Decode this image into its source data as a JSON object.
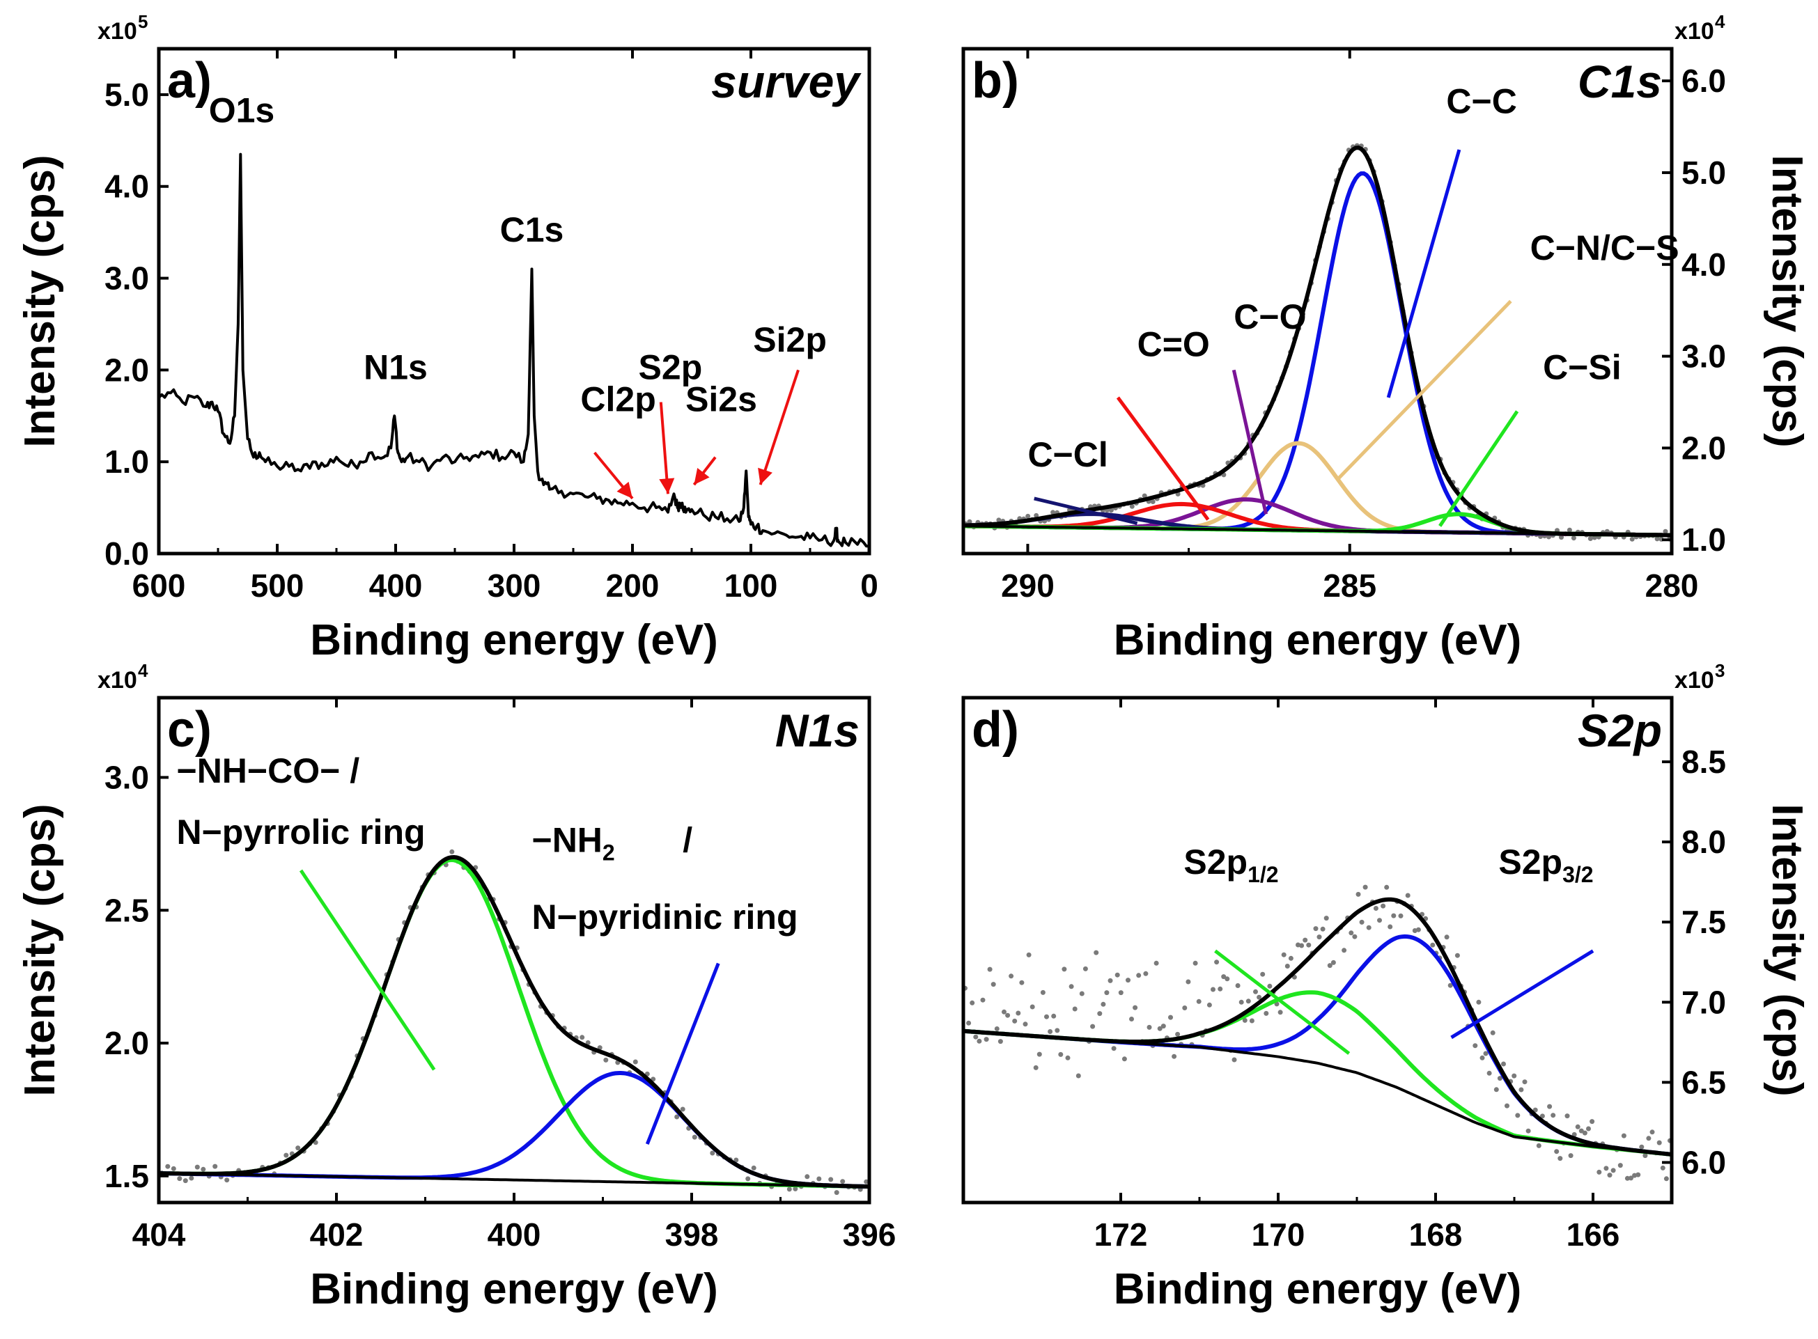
{
  "figure": {
    "description_none": ""
  },
  "colors": {
    "black": "#000000",
    "blue": "#0a10e6",
    "green": "#1fe51f",
    "red": "#f11010",
    "purple": "#7a1496",
    "tan": "#e8c27a",
    "navy": "#141470",
    "gray": "#7a7a7a",
    "arrow_red": "#ee1111"
  },
  "chart_data": [
    {
      "id": "a",
      "type": "line",
      "panel_letter": "a)",
      "title": "survey",
      "xlabel": "Binding energy (eV)",
      "ylabel": "Intensity (cps)",
      "y_multiplier": {
        "base": "x10",
        "exp": "5"
      },
      "xlim": [
        600,
        0
      ],
      "ylim": [
        0,
        5.5
      ],
      "xticks": [
        600,
        500,
        400,
        300,
        200,
        100,
        0
      ],
      "xtick_labels": [
        "600",
        "500",
        "400",
        "300",
        "200",
        "100",
        "0"
      ],
      "yticks": [
        0,
        1,
        2,
        3,
        4,
        5
      ],
      "ytick_labels": [
        "0.0",
        "1.0",
        "2.0",
        "3.0",
        "4.0",
        "5.0"
      ],
      "series": [
        {
          "name": "survey spectrum",
          "color_key": "black",
          "x": [
            600,
            590,
            580,
            570,
            560,
            555,
            550,
            545,
            540,
            536,
            533,
            531,
            529,
            525,
            520,
            515,
            510,
            500,
            490,
            480,
            470,
            460,
            450,
            440,
            430,
            420,
            410,
            404,
            401,
            398,
            395,
            390,
            380,
            370,
            360,
            350,
            340,
            330,
            320,
            310,
            300,
            292,
            288,
            285,
            283,
            280,
            275,
            270,
            260,
            250,
            240,
            230,
            220,
            210,
            200,
            190,
            180,
            170,
            165,
            162,
            160,
            158,
            155,
            150,
            140,
            130,
            120,
            110,
            106,
            104,
            102,
            100,
            95,
            90,
            80,
            70,
            60,
            50,
            40,
            30,
            28,
            26,
            20,
            10,
            0
          ],
          "values": [
            1.7,
            1.75,
            1.65,
            1.7,
            1.6,
            1.65,
            1.55,
            1.3,
            1.2,
            1.5,
            2.5,
            4.35,
            2.0,
            1.25,
            1.05,
            1.1,
            1.0,
            0.95,
            0.95,
            0.9,
            1.0,
            0.95,
            1.05,
            0.95,
            1.0,
            1.1,
            1.05,
            1.15,
            1.5,
            1.1,
            1.0,
            1.05,
            1.0,
            0.95,
            1.05,
            1.0,
            1.05,
            1.05,
            1.1,
            1.05,
            1.1,
            1.0,
            1.3,
            3.1,
            1.5,
            0.9,
            0.75,
            0.7,
            0.68,
            0.65,
            0.62,
            0.6,
            0.58,
            0.55,
            0.55,
            0.5,
            0.5,
            0.45,
            0.65,
            0.5,
            0.55,
            0.55,
            0.45,
            0.48,
            0.42,
            0.4,
            0.38,
            0.35,
            0.5,
            0.9,
            0.4,
            0.32,
            0.3,
            0.25,
            0.22,
            0.2,
            0.18,
            0.17,
            0.15,
            0.14,
            0.25,
            0.13,
            0.12,
            0.1,
            0.08
          ]
        }
      ],
      "annotations": [
        {
          "text": "O1s",
          "x": 530,
          "y": 4.7
        },
        {
          "text": "N1s",
          "x": 400,
          "y": 1.9
        },
        {
          "text": "C1s",
          "x": 285,
          "y": 3.4
        },
        {
          "text": "Cl2p",
          "x": 212,
          "y": 1.55
        },
        {
          "text": "S2p",
          "x": 168,
          "y": 1.9
        },
        {
          "text": "Si2s",
          "x": 125,
          "y": 1.55
        },
        {
          "text": "Si2p",
          "x": 67,
          "y": 2.2
        }
      ],
      "arrows": [
        {
          "x1": 232,
          "y1": 1.1,
          "x2": 200,
          "y2": 0.6
        },
        {
          "x1": 176,
          "y1": 1.65,
          "x2": 170,
          "y2": 0.65
        },
        {
          "x1": 130,
          "y1": 1.05,
          "x2": 148,
          "y2": 0.75
        },
        {
          "x1": 60,
          "y1": 2.0,
          "x2": 92,
          "y2": 0.75
        }
      ]
    },
    {
      "id": "b",
      "type": "line",
      "panel_letter": "b)",
      "title": "C1s",
      "xlabel": "Binding energy (eV)",
      "ylabel": "Intensity (cps)",
      "y_multiplier": {
        "base": "x10",
        "exp": "4"
      },
      "xlim": [
        291,
        280
      ],
      "ylim": [
        0.85,
        6.35
      ],
      "xticks": [
        290,
        285,
        280
      ],
      "xtick_labels": [
        "290",
        "285",
        "280"
      ],
      "yticks": [
        1,
        2,
        3,
        4,
        5,
        6
      ],
      "ytick_labels": [
        "1.0",
        "2.0",
        "3.0",
        "4.0",
        "5.0",
        "6.0"
      ],
      "baseline": {
        "x": [
          291,
          280
        ],
        "y": [
          1.15,
          1.05
        ]
      },
      "series": [
        {
          "name": "C−C",
          "color_key": "blue",
          "center": 284.8,
          "amplitude": 3.9,
          "sigma": 0.62
        },
        {
          "name": "C−N/C−S",
          "color_key": "tan",
          "center": 285.8,
          "amplitude": 0.95,
          "sigma": 0.6
        },
        {
          "name": "C−O",
          "color_key": "purple",
          "center": 286.6,
          "amplitude": 0.33,
          "sigma": 0.7
        },
        {
          "name": "C=O",
          "color_key": "red",
          "center": 287.6,
          "amplitude": 0.27,
          "sigma": 0.75
        },
        {
          "name": "C−Cl",
          "color_key": "navy",
          "center": 289.0,
          "amplitude": 0.15,
          "sigma": 0.8
        },
        {
          "name": "C−Si",
          "color_key": "green",
          "center": 283.3,
          "amplitude": 0.2,
          "sigma": 0.5
        }
      ],
      "annotations": [
        {
          "text": "C−C",
          "x": 283.5,
          "y": 5.65
        },
        {
          "text": "C−N/C−S",
          "x": 282.2,
          "y": 4.05
        },
        {
          "text": "C−O",
          "x": 286.8,
          "y": 3.3
        },
        {
          "text": "C=O",
          "x": 288.3,
          "y": 3.0
        },
        {
          "text": "C−Cl",
          "x": 290.0,
          "y": 1.8
        },
        {
          "text": "C−Si",
          "x": 282.0,
          "y": 2.75
        }
      ],
      "pointers": [
        {
          "color_key": "blue",
          "x1": 283.3,
          "y1": 5.25,
          "x2": 284.4,
          "y2": 2.55
        },
        {
          "color_key": "tan",
          "x1": 282.5,
          "y1": 3.6,
          "x2": 285.2,
          "y2": 1.65
        },
        {
          "color_key": "purple",
          "x1": 286.8,
          "y1": 2.85,
          "x2": 286.3,
          "y2": 1.28
        },
        {
          "color_key": "red",
          "x1": 288.6,
          "y1": 2.55,
          "x2": 287.2,
          "y2": 1.22
        },
        {
          "color_key": "navy",
          "x1": 289.9,
          "y1": 1.45,
          "x2": 288.3,
          "y2": 1.18
        },
        {
          "color_key": "green",
          "x1": 282.4,
          "y1": 2.4,
          "x2": 283.6,
          "y2": 1.15
        }
      ]
    },
    {
      "id": "c",
      "type": "line",
      "panel_letter": "c)",
      "title": "N1s",
      "xlabel": "Binding energy (eV)",
      "ylabel": "Intensity (cps)",
      "y_multiplier": {
        "base": "x10",
        "exp": "4"
      },
      "xlim": [
        404,
        396
      ],
      "ylim": [
        1.4,
        3.3
      ],
      "xticks": [
        404,
        402,
        400,
        398,
        396
      ],
      "xtick_labels": [
        "404",
        "402",
        "400",
        "398",
        "396"
      ],
      "yticks": [
        1.5,
        2.0,
        2.5,
        3.0
      ],
      "ytick_labels": [
        "1.5",
        "2.0",
        "2.5",
        "3.0"
      ],
      "baseline": {
        "x": [
          404,
          396
        ],
        "y": [
          1.51,
          1.46
        ]
      },
      "series": [
        {
          "name": "−NH−CO− / N−pyrrolic ring",
          "color_key": "green",
          "center": 400.7,
          "amplitude": 1.2,
          "sigma": 0.75
        },
        {
          "name": "−NH2 / N−pyridinic ring",
          "color_key": "blue",
          "center": 398.8,
          "amplitude": 0.41,
          "sigma": 0.7
        }
      ],
      "annotations": [
        {
          "text": "−NH−CO− /",
          "x": 403.8,
          "y": 2.98
        },
        {
          "text": "N−pyrrolic ring",
          "x": 403.8,
          "y": 2.75
        },
        {
          "text": "−NH",
          "x": 399.8,
          "y": 2.72
        },
        {
          "text": "/",
          "x": 398.1,
          "y": 2.72
        },
        {
          "text": "N−pyridinic ring",
          "x": 399.8,
          "y": 2.43
        }
      ],
      "subscripts": [
        {
          "base_index": 2,
          "text": "2"
        }
      ],
      "pointers": [
        {
          "color_key": "green",
          "x1": 402.4,
          "y1": 2.65,
          "x2": 400.9,
          "y2": 1.9
        },
        {
          "color_key": "blue",
          "x1": 397.7,
          "y1": 2.3,
          "x2": 398.5,
          "y2": 1.62
        }
      ]
    },
    {
      "id": "d",
      "type": "line",
      "panel_letter": "d)",
      "title": "S2p",
      "xlabel": "Binding energy (eV)",
      "ylabel": "Intensity (cps)",
      "y_multiplier": {
        "base": "x10",
        "exp": "3"
      },
      "xlim": [
        174,
        165
      ],
      "ylim": [
        5.75,
        8.9
      ],
      "xticks": [
        172,
        170,
        168,
        166
      ],
      "xtick_labels": [
        "172",
        "170",
        "168",
        "166"
      ],
      "yticks": [
        6.0,
        6.5,
        7.0,
        7.5,
        8.0,
        8.5
      ],
      "ytick_labels": [
        "6.0",
        "6.5",
        "7.0",
        "7.5",
        "8.0",
        "8.5"
      ],
      "baseline_poly": {
        "x": [
          174,
          172,
          171,
          170,
          169.5,
          169,
          168.5,
          168,
          167.5,
          167,
          166,
          165
        ],
        "y": [
          6.82,
          6.75,
          6.72,
          6.66,
          6.62,
          6.56,
          6.47,
          6.36,
          6.25,
          6.16,
          6.1,
          6.05
        ]
      },
      "series": [
        {
          "name": "S2p3/2",
          "color_key": "blue",
          "center": 168.25,
          "amplitude": 0.98,
          "sigma": 0.78
        },
        {
          "name": "S2p1/2",
          "color_key": "green",
          "center": 169.45,
          "amplitude": 0.44,
          "sigma": 0.85
        }
      ],
      "annotations": [
        {
          "text": "S2p",
          "x": 171.2,
          "y": 7.8,
          "sub": "1/2"
        },
        {
          "text": "S2p",
          "x": 167.2,
          "y": 7.8,
          "sub": "3/2"
        }
      ],
      "pointers": [
        {
          "color_key": "green",
          "x1": 170.8,
          "y1": 7.32,
          "x2": 169.1,
          "y2": 6.68
        },
        {
          "color_key": "blue",
          "x1": 166.0,
          "y1": 7.32,
          "x2": 167.8,
          "y2": 6.78
        }
      ]
    }
  ]
}
